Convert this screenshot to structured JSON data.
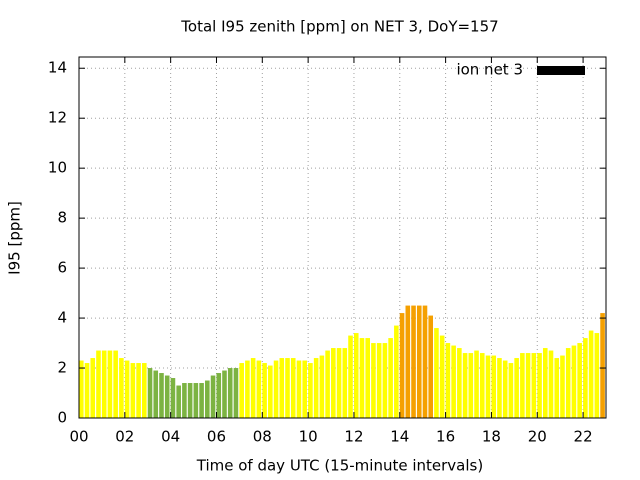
{
  "chart_data": {
    "type": "bar",
    "title": "Total I95 zenith [ppm] on NET 3, DoY=157",
    "x_label": "Time of day UTC (15-minute intervals)",
    "y_label": "I95 [ppm]",
    "x": [
      0,
      0.25,
      0.5,
      0.75,
      1,
      1.25,
      1.5,
      1.75,
      2,
      2.25,
      2.5,
      2.75,
      3,
      3.25,
      3.5,
      3.75,
      4,
      4.25,
      4.5,
      4.75,
      5,
      5.25,
      5.5,
      5.75,
      6,
      6.25,
      6.5,
      6.75,
      7,
      7.25,
      7.5,
      7.75,
      8,
      8.25,
      8.5,
      8.75,
      9,
      9.25,
      9.5,
      9.75,
      10,
      10.25,
      10.5,
      10.75,
      11,
      11.25,
      11.5,
      11.75,
      12,
      12.25,
      12.5,
      12.75,
      13,
      13.25,
      13.5,
      13.75,
      14,
      14.25,
      14.5,
      14.75,
      15,
      15.25,
      15.5,
      15.75,
      16,
      16.25,
      16.5,
      16.75,
      17,
      17.25,
      17.5,
      17.75,
      18,
      18.25,
      18.5,
      18.75,
      19,
      19.25,
      19.5,
      19.75,
      20,
      20.25,
      20.5,
      20.75,
      21,
      21.25,
      21.5,
      21.75,
      22,
      22.25,
      22.5,
      22.75
    ],
    "series": [
      {
        "name": "ion net 3",
        "color": "#000000",
        "values": [
          2.3,
          2.2,
          2.4,
          2.7,
          2.7,
          2.7,
          2.7,
          2.4,
          2.3,
          2.2,
          2.2,
          2.2,
          2.0,
          1.9,
          1.8,
          1.7,
          1.6,
          1.3,
          1.4,
          1.4,
          1.4,
          1.4,
          1.5,
          1.7,
          1.8,
          1.9,
          2.0,
          2.0,
          2.2,
          2.3,
          2.4,
          2.3,
          2.2,
          2.1,
          2.3,
          2.4,
          2.4,
          2.4,
          2.3,
          2.3,
          2.2,
          2.4,
          2.5,
          2.7,
          2.8,
          2.8,
          2.8,
          3.3,
          3.4,
          3.2,
          3.2,
          3.0,
          3.0,
          3.0,
          3.2,
          3.7,
          4.2,
          4.5,
          4.5,
          4.5,
          4.5,
          4.1,
          3.6,
          3.3,
          3.0,
          2.9,
          2.8,
          2.6,
          2.6,
          2.7,
          2.6,
          2.5,
          2.5,
          2.4,
          2.3,
          2.2,
          2.4,
          2.6,
          2.6,
          2.6,
          2.6,
          2.8,
          2.7,
          2.4,
          2.5,
          2.8,
          2.9,
          3.0,
          3.2,
          3.5,
          3.4,
          4.2
        ],
        "bar_colors": [
          "#ffff00",
          "#ffff00",
          "#ffff00",
          "#ffff00",
          "#ffff00",
          "#ffff00",
          "#ffff00",
          "#ffff00",
          "#ffff00",
          "#ffff00",
          "#ffff00",
          "#ffff00",
          "#7cb342",
          "#7cb342",
          "#7cb342",
          "#7cb342",
          "#7cb342",
          "#7cb342",
          "#7cb342",
          "#7cb342",
          "#7cb342",
          "#7cb342",
          "#7cb342",
          "#7cb342",
          "#7cb342",
          "#7cb342",
          "#7cb342",
          "#7cb342",
          "#ffff00",
          "#ffff00",
          "#ffff00",
          "#ffff00",
          "#ffff00",
          "#ffff00",
          "#ffff00",
          "#ffff00",
          "#ffff00",
          "#ffff00",
          "#ffff00",
          "#ffff00",
          "#ffff00",
          "#ffff00",
          "#ffff00",
          "#ffff00",
          "#ffff00",
          "#ffff00",
          "#ffff00",
          "#ffff00",
          "#ffff00",
          "#ffff00",
          "#ffff00",
          "#ffff00",
          "#ffff00",
          "#ffff00",
          "#ffff00",
          "#ffff00",
          "#f5a000",
          "#f5a000",
          "#f5a000",
          "#f5a000",
          "#f5a000",
          "#f5a000",
          "#ffff00",
          "#ffff00",
          "#ffff00",
          "#ffff00",
          "#ffff00",
          "#ffff00",
          "#ffff00",
          "#ffff00",
          "#ffff00",
          "#ffff00",
          "#ffff00",
          "#ffff00",
          "#ffff00",
          "#ffff00",
          "#ffff00",
          "#ffff00",
          "#ffff00",
          "#ffff00",
          "#ffff00",
          "#ffff00",
          "#ffff00",
          "#ffff00",
          "#ffff00",
          "#ffff00",
          "#ffff00",
          "#ffff00",
          "#ffff00",
          "#ffff00",
          "#ffff00",
          "#f5a000"
        ]
      }
    ],
    "xlim": [
      0,
      23
    ],
    "xticks": [
      {
        "value": 0,
        "label": "00"
      },
      {
        "value": 2,
        "label": "02"
      },
      {
        "value": 4,
        "label": "04"
      },
      {
        "value": 6,
        "label": "06"
      },
      {
        "value": 8,
        "label": "08"
      },
      10,
      12,
      14,
      16,
      18,
      20,
      22
    ],
    "ylim": [
      0,
      14.45
    ],
    "yticks": [
      0,
      2,
      4,
      6,
      8,
      10,
      12,
      14
    ],
    "grid": true,
    "legend": "top-right"
  }
}
